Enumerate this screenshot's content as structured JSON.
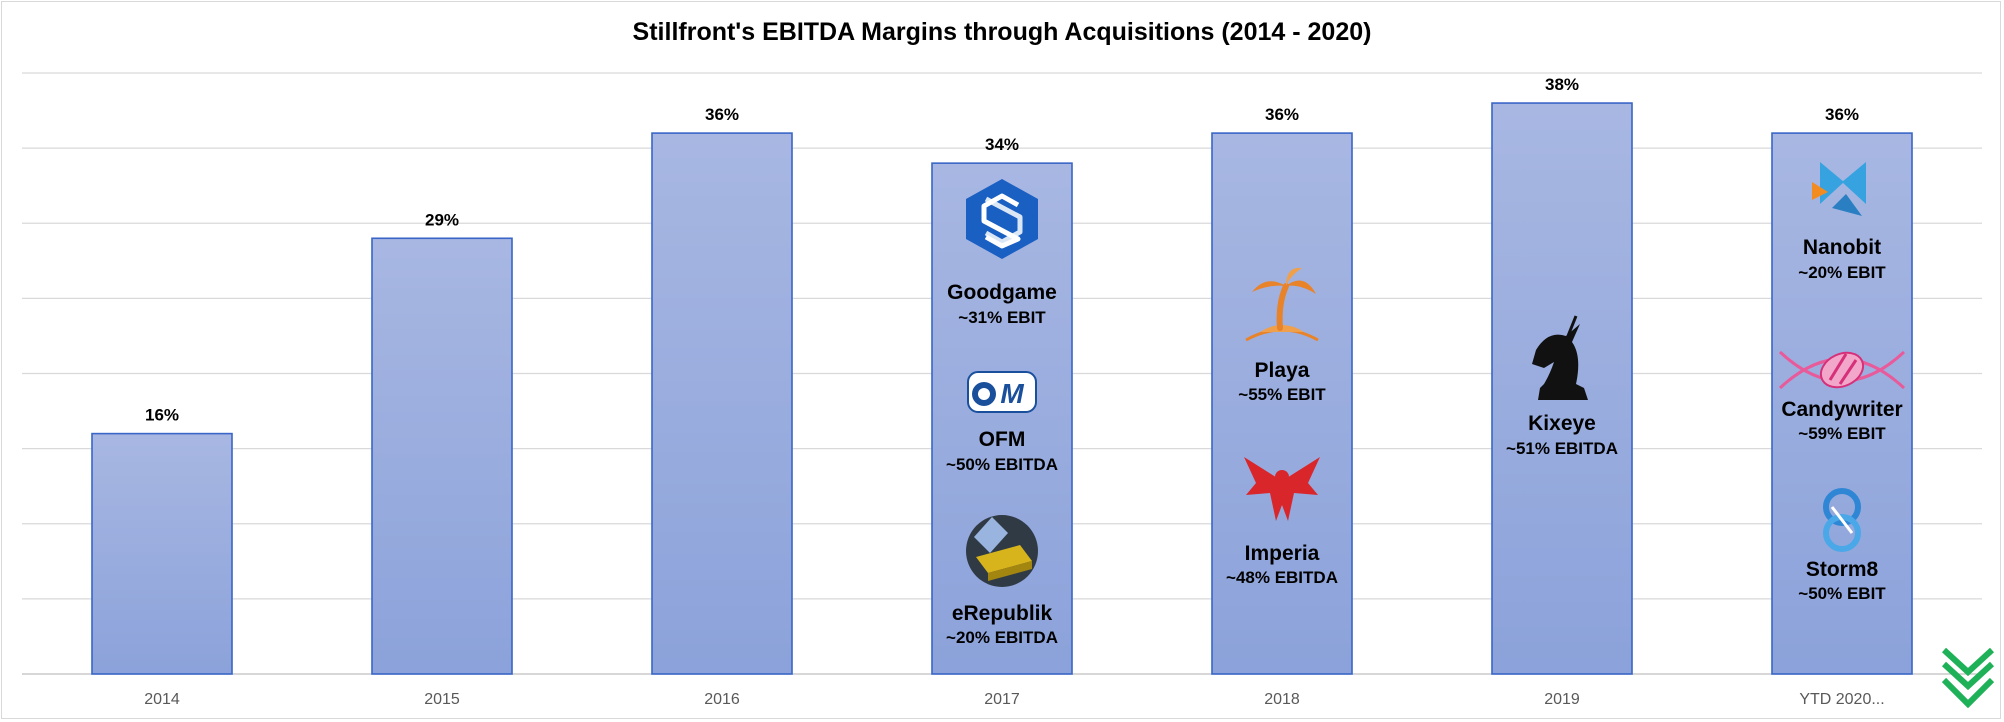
{
  "chart_data": {
    "type": "bar",
    "title": "Stillfront's EBITDA Margins through Acquisitions (2014 - 2020)",
    "xlabel": "",
    "ylabel": "",
    "categories": [
      "2014",
      "2015",
      "2016",
      "2017",
      "2018",
      "2019",
      "YTD 2020..."
    ],
    "values": [
      16,
      29,
      36,
      34,
      36,
      38,
      36
    ],
    "value_labels": [
      "16%",
      "29%",
      "36%",
      "34%",
      "36%",
      "38%",
      "36%"
    ],
    "ylim": [
      0,
      40
    ],
    "grid": true,
    "legend": "none",
    "bar_color": "#8ea5da",
    "bar_border": "#3a66c7",
    "annotations": [
      {
        "category": "2017",
        "companies": [
          {
            "name": "Goodgame",
            "stat": "~31% EBIT",
            "icon": "goodgame-logo-icon"
          },
          {
            "name": "OFM",
            "stat": "~50% EBITDA",
            "icon": "ofm-logo-icon"
          },
          {
            "name": "eRepublik",
            "stat": "~20% EBITDA",
            "icon": "erepublik-logo-icon"
          }
        ]
      },
      {
        "category": "2018",
        "companies": [
          {
            "name": "Playa",
            "stat": "~55% EBIT",
            "icon": "palm-island-icon"
          },
          {
            "name": "Imperia",
            "stat": "~48% EBITDA",
            "icon": "eagle-icon"
          }
        ]
      },
      {
        "category": "2019",
        "companies": [
          {
            "name": "Kixeye",
            "stat": "~51% EBITDA",
            "icon": "unicorn-knight-icon"
          }
        ]
      },
      {
        "category": "YTD 2020...",
        "companies": [
          {
            "name": "Nanobit",
            "stat": "~20% EBIT",
            "icon": "nanobit-logo-icon"
          },
          {
            "name": "Candywriter",
            "stat": "~59% EBIT",
            "icon": "candy-helix-icon"
          },
          {
            "name": "Storm8",
            "stat": "~50% EBIT",
            "icon": "storm8-logo-icon"
          }
        ]
      }
    ]
  },
  "brand": {
    "icon": "chevron-check-logo-icon",
    "color": "#1eb157"
  }
}
